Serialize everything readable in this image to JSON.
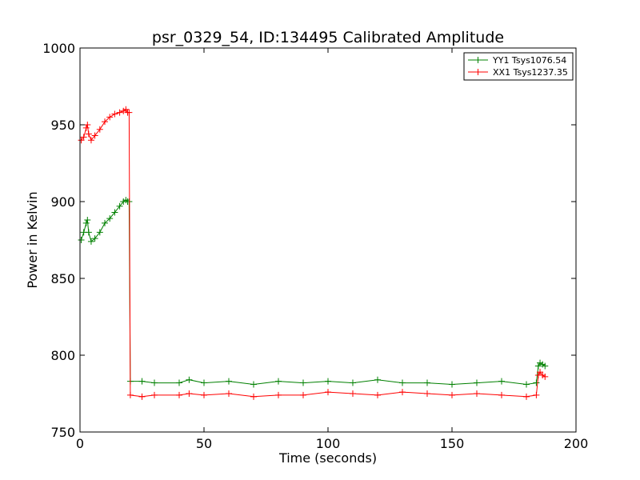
{
  "chart_data": {
    "type": "line",
    "title": "psr_0329_54, ID:134495 Calibrated Amplitude",
    "xlabel": "Time (seconds)",
    "ylabel": "Power in Kelvin",
    "xlim": [
      0,
      200
    ],
    "ylim": [
      750,
      1000
    ],
    "xticks": [
      0,
      50,
      100,
      150,
      200
    ],
    "yticks": [
      750,
      800,
      850,
      900,
      950,
      1000
    ],
    "grid": false,
    "legend_position": "top-right",
    "marker": "plus",
    "series": [
      {
        "name": "YY1 Tsys1076.54",
        "color": "#008000",
        "x": [
          0.5,
          1.5,
          2.5,
          3.0,
          3.5,
          4.5,
          6,
          8,
          10,
          12,
          14,
          16,
          17.5,
          18.5,
          19.2,
          19.8,
          20.3,
          25,
          30,
          40,
          44,
          50,
          60,
          70,
          80,
          90,
          100,
          110,
          120,
          130,
          140,
          150,
          160,
          170,
          180,
          184,
          184.8,
          185.5,
          186.5,
          187.5
        ],
        "y": [
          875,
          880,
          886,
          888,
          880,
          874,
          876,
          880,
          886,
          889,
          893,
          897,
          900,
          901,
          900,
          900,
          783,
          783,
          782,
          782,
          784,
          782,
          783,
          781,
          783,
          782,
          783,
          782,
          784,
          782,
          782,
          781,
          782,
          783,
          781,
          782,
          793,
          795,
          794,
          793
        ]
      },
      {
        "name": "XX1 Tsys1237.35",
        "color": "#ff0000",
        "x": [
          0.5,
          1.5,
          2.5,
          3.0,
          3.5,
          4.5,
          6,
          8,
          10,
          12,
          14,
          16,
          17.5,
          18.5,
          19.2,
          19.8,
          20.3,
          25,
          30,
          40,
          44,
          50,
          60,
          70,
          80,
          90,
          100,
          110,
          120,
          130,
          140,
          150,
          160,
          170,
          180,
          184,
          184.8,
          185.5,
          186.5,
          187.5
        ],
        "y": [
          940,
          942,
          948,
          950,
          944,
          940,
          943,
          947,
          952,
          955,
          957,
          958,
          959,
          960,
          958,
          958,
          774,
          773,
          774,
          774,
          775,
          774,
          775,
          773,
          774,
          774,
          776,
          775,
          774,
          776,
          775,
          774,
          775,
          774,
          773,
          774,
          787,
          789,
          787,
          786
        ]
      }
    ]
  }
}
